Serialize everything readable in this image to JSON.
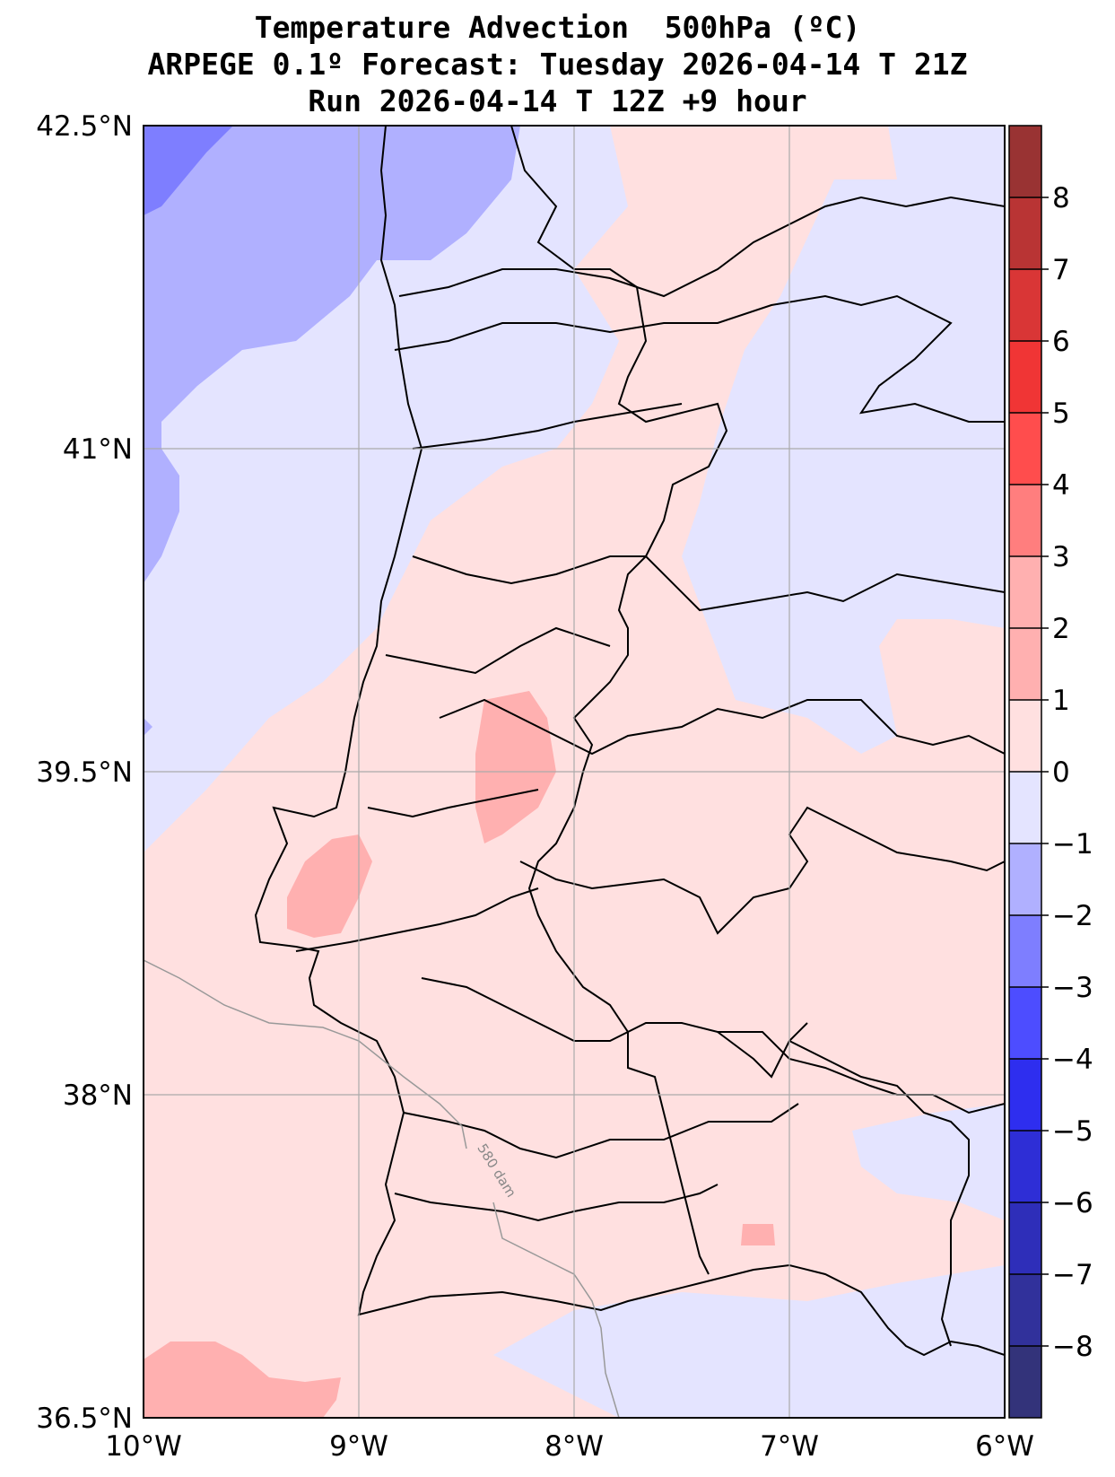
{
  "title": {
    "line1": "Temperature Advection  500hPa (ºC)",
    "line2": "ARPEGE 0.1º Forecast: Tuesday 2026-04-14 T 21Z",
    "line3": "Run 2026-04-14 T 12Z +9 hour"
  },
  "map": {
    "lon_range": [
      -10,
      -6
    ],
    "lat_range": [
      36.5,
      42.5
    ],
    "lon_ticks": [
      {
        "value": -10,
        "label": "10°W"
      },
      {
        "value": -9,
        "label": "9°W"
      },
      {
        "value": -8,
        "label": "8°W"
      },
      {
        "value": -7,
        "label": "7°W"
      },
      {
        "value": -6,
        "label": "6°W"
      }
    ],
    "lat_ticks": [
      {
        "value": 42.5,
        "label": "42.5°N"
      },
      {
        "value": 41,
        "label": "41°N"
      },
      {
        "value": 39.5,
        "label": "39.5°N"
      },
      {
        "value": 38,
        "label": "38°N"
      },
      {
        "value": 36.5,
        "label": "36.5°N"
      }
    ],
    "grid": true,
    "contour_label": "580 dam",
    "background_value": "0 to 1"
  },
  "colorbar": {
    "levels": [
      {
        "low": 8,
        "high": 9,
        "color": "#993333"
      },
      {
        "low": 7,
        "high": 8,
        "color": "#b93434"
      },
      {
        "low": 6,
        "high": 7,
        "color": "#d93636"
      },
      {
        "low": 5,
        "high": 6,
        "color": "#f03535"
      },
      {
        "low": 4,
        "high": 5,
        "color": "#ff4d4d"
      },
      {
        "low": 3,
        "high": 4,
        "color": "#ff7e7e"
      },
      {
        "low": 2,
        "high": 3,
        "color": "#ffb0b0"
      },
      {
        "low": 1,
        "high": 2,
        "color": "#ffb0b0"
      },
      {
        "low": 0,
        "high": 1,
        "color": "#ffe0e0"
      },
      {
        "low": -1,
        "high": 0,
        "color": "#e4e4ff"
      },
      {
        "low": -2,
        "high": -1,
        "color": "#b0b0ff"
      },
      {
        "low": -3,
        "high": -2,
        "color": "#7e7eff"
      },
      {
        "low": -4,
        "high": -3,
        "color": "#4d4dff"
      },
      {
        "low": -5,
        "high": -4,
        "color": "#2e2eef"
      },
      {
        "low": -6,
        "high": -5,
        "color": "#2e2ed6"
      },
      {
        "low": -7,
        "high": -6,
        "color": "#2e2eb9"
      },
      {
        "low": -8,
        "high": -7,
        "color": "#31319b"
      },
      {
        "low": -9,
        "high": -8,
        "color": "#33337a"
      }
    ],
    "tick_labels": [
      "8",
      "7",
      "6",
      "5",
      "4",
      "3",
      "2",
      "1",
      "0",
      "−1",
      "−2",
      "−3",
      "−4",
      "−5",
      "−6",
      "−7",
      "−8"
    ]
  }
}
